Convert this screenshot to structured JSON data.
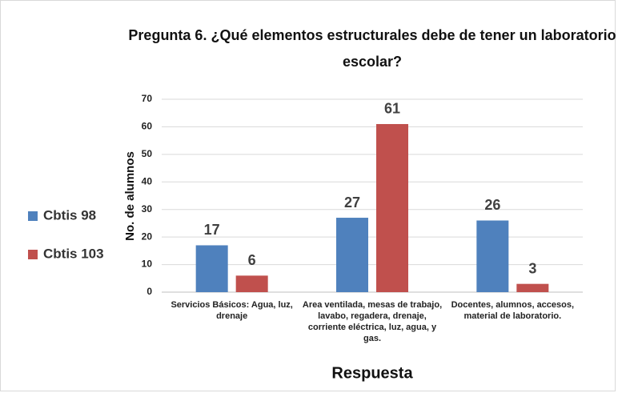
{
  "chart_data": {
    "type": "bar",
    "title": "Pregunta 6. ¿Qué elementos estructurales debe de tener un laboratorio escolar?",
    "x_label": "Respuesta",
    "y_label": "No. de alumnos",
    "categories": [
      "Servicios Básicos: Agua, luz, drenaje",
      "Area ventilada, mesas de trabajo, lavabo, regadera, drenaje, corriente eléctrica, luz, agua, y gas.",
      "Docentes, alumnos, accesos, material de laboratorio."
    ],
    "series": [
      {
        "name": "Cbtis 98",
        "color": "#4f81bd",
        "values": [
          17,
          27,
          26
        ]
      },
      {
        "name": "Cbtis 103",
        "color": "#c0504d",
        "values": [
          6,
          61,
          3
        ]
      }
    ],
    "ylim": [
      0,
      70
    ],
    "yticks": [
      0,
      10,
      20,
      30,
      40,
      50,
      60,
      70
    ],
    "grid": true,
    "legend": "left"
  }
}
